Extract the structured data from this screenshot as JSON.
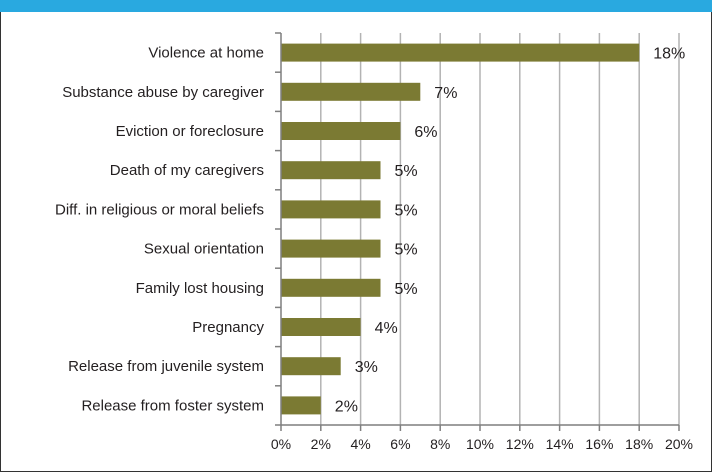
{
  "colors": {
    "header": "#29a9e0",
    "bar": "#7b7a33",
    "grid": "#b3b3b3",
    "axis": "#7f7f7f",
    "text": "#231f20"
  },
  "chart_data": {
    "type": "bar",
    "orientation": "horizontal",
    "categories": [
      "Violence at home",
      "Substance abuse by caregiver",
      "Eviction or foreclosure",
      "Death of my caregivers",
      "Diff. in religious or moral beliefs",
      "Sexual orientation",
      "Family lost housing",
      "Pregnancy",
      "Release from juvenile system",
      "Release from foster system"
    ],
    "values": [
      18,
      7,
      6,
      5,
      5,
      5,
      5,
      4,
      3,
      2
    ],
    "value_labels": [
      "18%",
      "7%",
      "6%",
      "5%",
      "5%",
      "5%",
      "5%",
      "4%",
      "3%",
      "2%"
    ],
    "ticks": [
      0,
      2,
      4,
      6,
      8,
      10,
      12,
      14,
      16,
      18,
      20
    ],
    "tick_labels": [
      "0%",
      "2%",
      "4%",
      "6%",
      "8%",
      "10%",
      "12%",
      "14%",
      "16%",
      "18%",
      "20%"
    ],
    "xlim": [
      0,
      20
    ],
    "grid": true,
    "legend": "none"
  }
}
